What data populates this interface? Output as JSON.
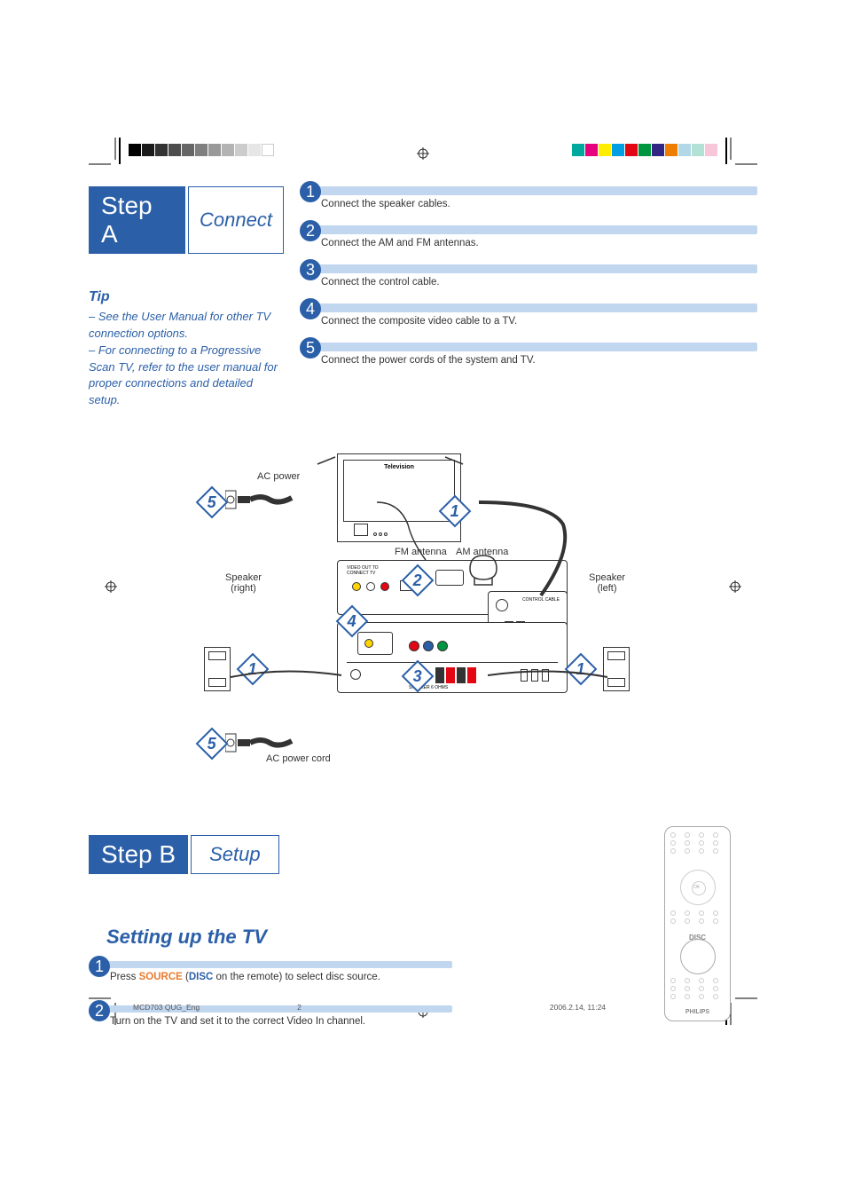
{
  "page": {
    "reg_left_colors": [
      "#000000",
      "#1a1a1a",
      "#333333",
      "#4d4d4d",
      "#666666",
      "#808080",
      "#999999",
      "#b3b3b3",
      "#cccccc",
      "#e6e6e6",
      "#ffffff"
    ],
    "reg_right_colors": [
      "#00a99d",
      "#e6007e",
      "#ffed00",
      "#009fe3",
      "#e30613",
      "#009640",
      "#312783",
      "#ef7d00",
      "#b2d8e8",
      "#b2e2d6",
      "#f7c6d9"
    ],
    "footer_left": "MCD703 QUG_Eng",
    "footer_page": "2",
    "footer_right": "2006.2.14, 11:24"
  },
  "stepA": {
    "badge_main": "Step A",
    "badge_sub": "Connect",
    "tip_heading": "Tip",
    "tip_line1": "–  See the User Manual for other TV connection options.",
    "tip_line2": "–  For connecting to a Progressive Scan TV, refer to the user manual for proper connections and detailed setup.",
    "steps": [
      {
        "num": "1",
        "text": "Connect the speaker cables."
      },
      {
        "num": "2",
        "text": "Connect the AM and FM antennas."
      },
      {
        "num": "3",
        "text": "Connect the control cable."
      },
      {
        "num": "4",
        "text": "Connect the composite video cable to a TV."
      },
      {
        "num": "5",
        "text": "Connect the power cords of the system and TV."
      }
    ],
    "bar_color": "#c1d6ef",
    "accent_color": "#2b5fa8"
  },
  "diagram": {
    "tv_label": "Television",
    "ac_power_label": "AC power",
    "fm_label": "FM antenna",
    "am_label": "AM antenna",
    "speaker_right_label_1": "Speaker",
    "speaker_right_label_2": "(right)",
    "speaker_left_label_1": "Speaker",
    "speaker_left_label_2": "(left)",
    "ac_cord_label": "AC   power cord",
    "callouts": [
      "1",
      "2",
      "3",
      "4",
      "5"
    ],
    "colors": {
      "yellow": "#ffd400",
      "white": "#ffffff",
      "red": "#e30613",
      "blue": "#2b5fa8",
      "green": "#009640",
      "stroke": "#333333"
    }
  },
  "stepB": {
    "badge_main": "Step B",
    "badge_sub": "Setup",
    "section_heading": "Setting up the TV",
    "steps": [
      {
        "num": "1",
        "pre": "Press ",
        "orange": "SOURCE",
        "paren_open": " (",
        "blue": "DISC",
        "post": " on the remote) to select disc source."
      },
      {
        "num": "2",
        "text": "Turn on the TV and set it to the correct Video In channel."
      }
    ],
    "remote": {
      "disc_label": "DISC",
      "brand": "PHILIPS",
      "ok_label": "OK"
    }
  }
}
